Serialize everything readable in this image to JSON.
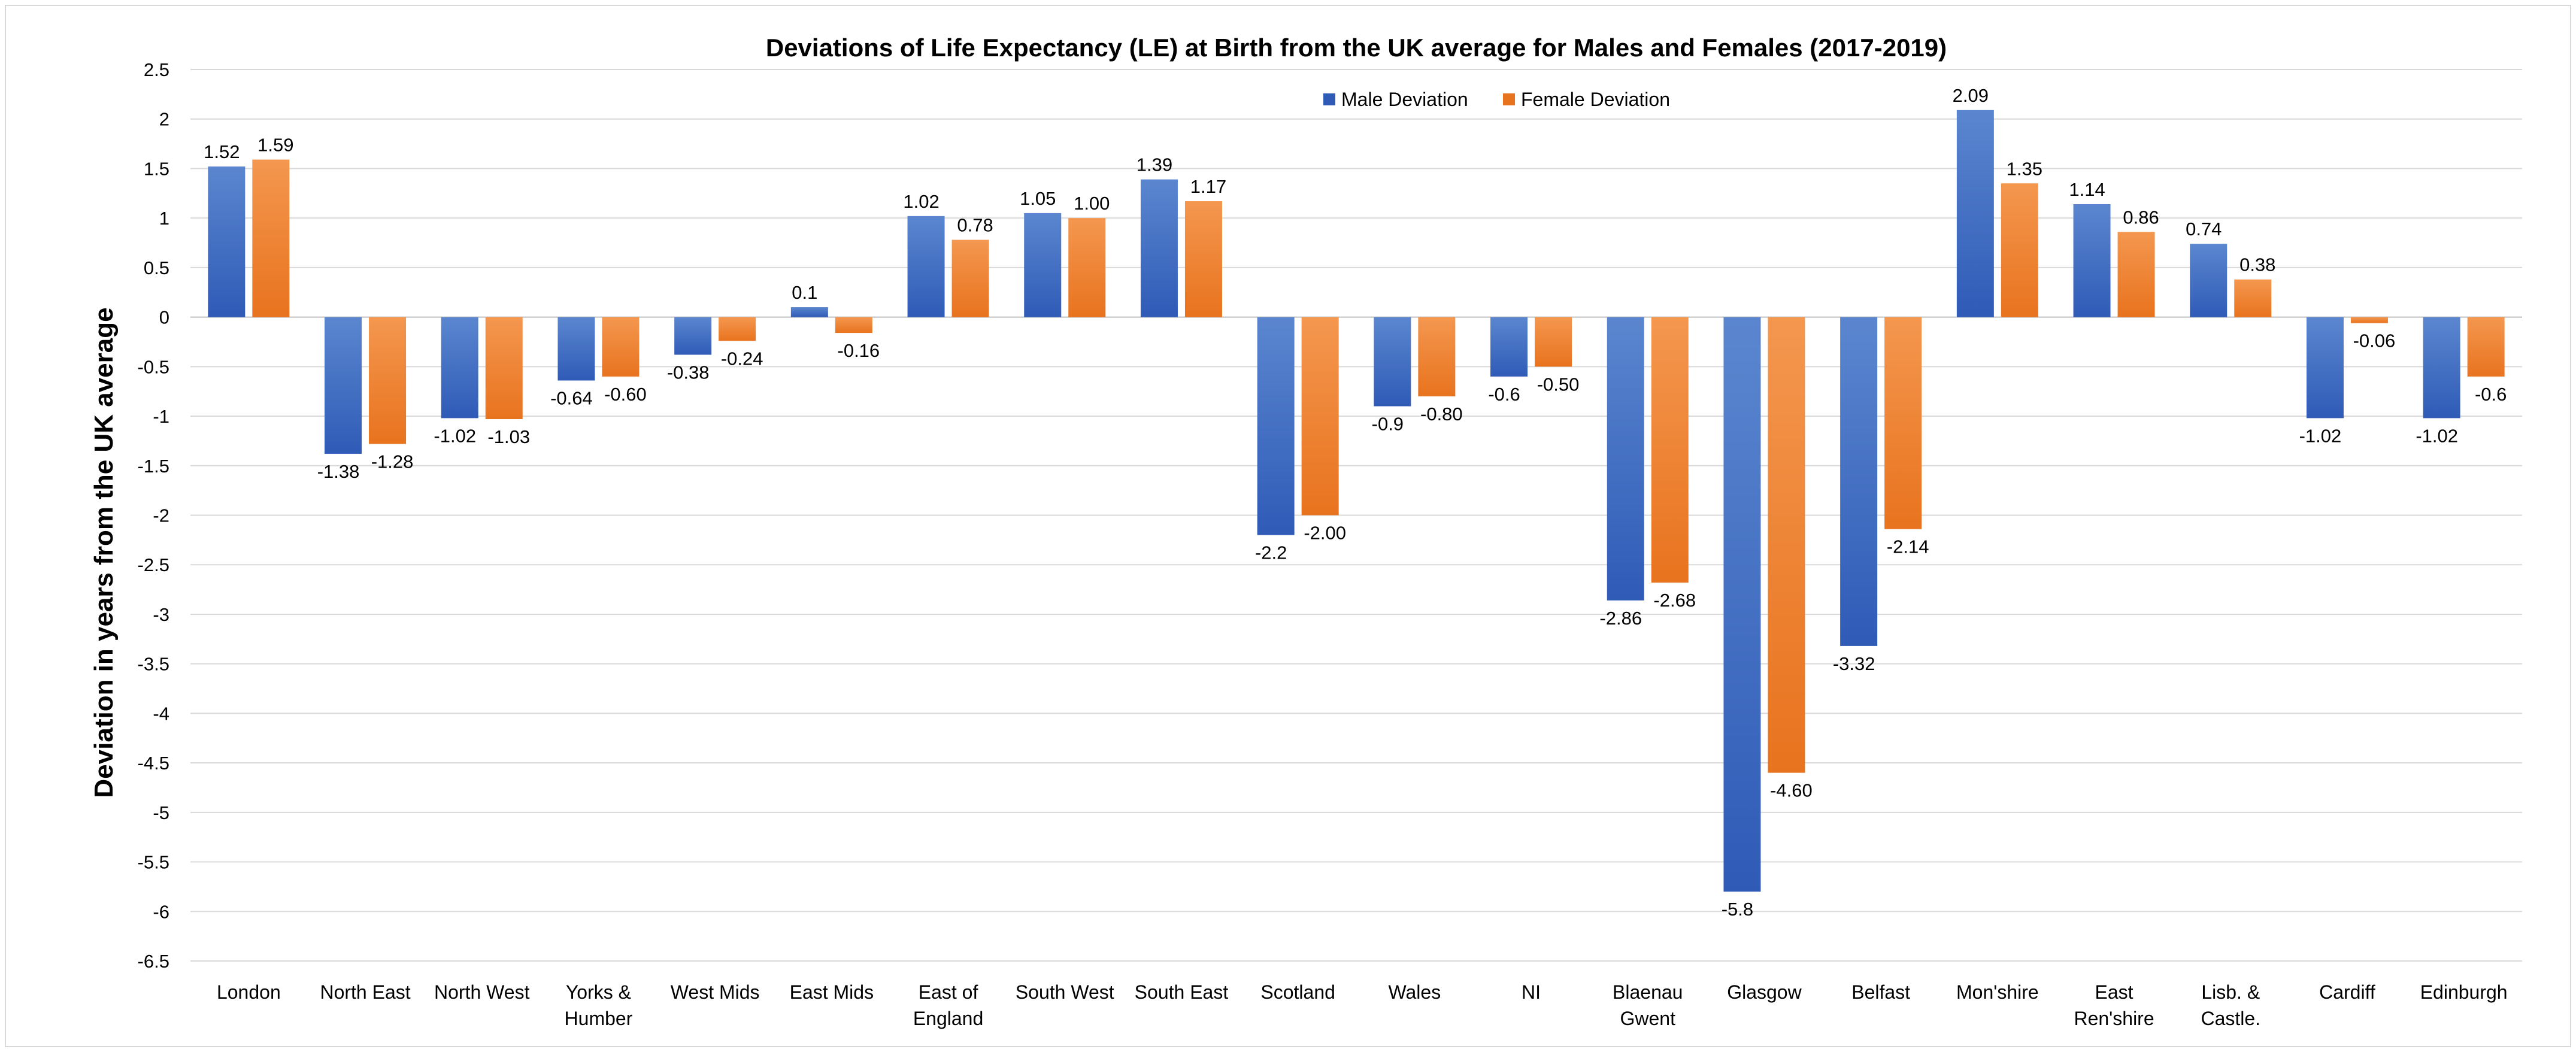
{
  "chart_data": {
    "type": "bar",
    "title": "Deviations of Life Expectancy (LE) at Birth from the UK average for Males and Females (2017-2019)",
    "xlabel": "",
    "ylabel": "Deviation in years from the UK average",
    "ylim": [
      -6.5,
      2.5
    ],
    "ytick_step": 0.5,
    "grid": true,
    "legend_position": "top-center",
    "categories": [
      [
        "London"
      ],
      [
        "North East"
      ],
      [
        "North West"
      ],
      [
        "Yorks &",
        "Humber"
      ],
      [
        "West Mids"
      ],
      [
        "East Mids"
      ],
      [
        "East of",
        "England"
      ],
      [
        "South West"
      ],
      [
        "South East"
      ],
      [
        "Scotland"
      ],
      [
        "Wales"
      ],
      [
        "NI"
      ],
      [
        "Blaenau",
        "Gwent"
      ],
      [
        "Glasgow"
      ],
      [
        "Belfast"
      ],
      [
        "Mon'shire"
      ],
      [
        "East",
        "Ren'shire"
      ],
      [
        "Lisb. &",
        "Castle."
      ],
      [
        "Cardiff"
      ],
      [
        "Edinburgh"
      ]
    ],
    "series": [
      {
        "name": "Male Deviation",
        "color_top": "#5b86cf",
        "color_bottom": "#2f5bb7",
        "values": [
          1.52,
          -1.38,
          -1.02,
          -0.64,
          -0.38,
          0.1,
          1.02,
          1.05,
          1.39,
          -2.2,
          -0.9,
          -0.6,
          -2.86,
          -5.8,
          -3.32,
          2.09,
          1.14,
          0.74,
          -1.02,
          -1.02
        ],
        "labels": [
          "1.52",
          "-1.38",
          "-1.02",
          "-0.64",
          "-0.38",
          "0.1",
          "1.02",
          "1.05",
          "1.39",
          "-2.2",
          "-0.9",
          "-0.6",
          "-2.86",
          "-5.8",
          "-3.32",
          "2.09",
          "1.14",
          "0.74",
          "-1.02",
          "-1.02"
        ]
      },
      {
        "name": "Female Deviation",
        "color_top": "#f4974f",
        "color_bottom": "#e8731e",
        "values": [
          1.59,
          -1.28,
          -1.03,
          -0.6,
          -0.24,
          -0.16,
          0.78,
          1.0,
          1.17,
          -2.0,
          -0.8,
          -0.5,
          -2.68,
          -4.6,
          -2.14,
          1.35,
          0.86,
          0.38,
          -0.06,
          -0.6
        ],
        "labels": [
          "1.59",
          "-1.28",
          "-1.03",
          "-0.60",
          "-0.24",
          "-0.16",
          "0.78",
          "1.00",
          "1.17",
          "-2.00",
          "-0.80",
          "-0.50",
          "-2.68",
          "-4.60",
          "-2.14",
          "1.35",
          "0.86",
          "0.38",
          "-0.06",
          "-0.6"
        ]
      }
    ]
  }
}
